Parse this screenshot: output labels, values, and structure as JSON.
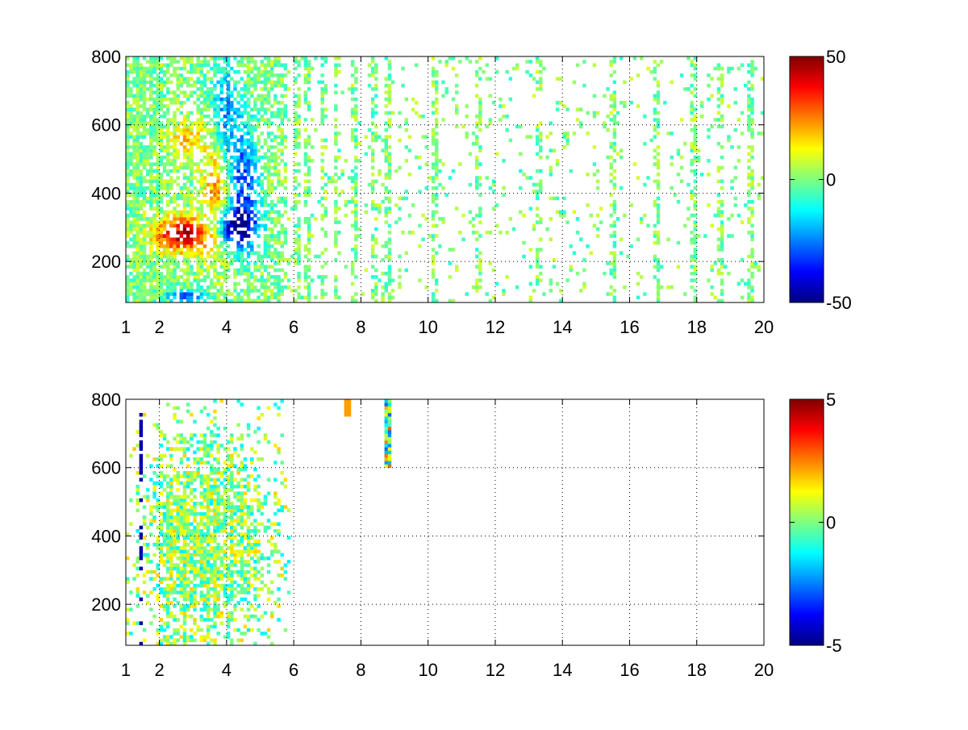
{
  "chart_data": [
    {
      "type": "heatmap",
      "title": "",
      "xlabel": "",
      "ylabel": "",
      "xlim": [
        1,
        20
      ],
      "ylim": [
        80,
        800
      ],
      "x_ticks": [
        "1",
        "2",
        "4",
        "6",
        "8",
        "10",
        "12",
        "14",
        "16",
        "18",
        "20"
      ],
      "y_ticks": [
        "200",
        "400",
        "600",
        "800"
      ],
      "grid": true,
      "colormap": "jet",
      "colorbar": {
        "ticks": [
          "50",
          "0",
          "-50"
        ],
        "min": -50,
        "max": 50
      },
      "colors": [
        "#00007f",
        "#0000ff",
        "#00ffff",
        "#7fff7f",
        "#ffff00",
        "#ff0000",
        "#7f0000"
      ],
      "features": [
        {
          "x": 2.7,
          "y": 280,
          "value": 45,
          "description": "positive ridge"
        },
        {
          "x": 4.1,
          "y": 300,
          "value": -45,
          "description": "negative ridge"
        },
        {
          "x": 2.8,
          "y": 100,
          "value": -35,
          "description": "negative spot"
        }
      ]
    },
    {
      "type": "heatmap",
      "title": "",
      "xlabel": "",
      "ylabel": "",
      "xlim": [
        1,
        20
      ],
      "ylim": [
        80,
        800
      ],
      "x_ticks": [
        "1",
        "2",
        "4",
        "6",
        "8",
        "10",
        "12",
        "14",
        "16",
        "18",
        "20"
      ],
      "y_ticks": [
        "200",
        "400",
        "600",
        "800"
      ],
      "grid": true,
      "colormap": "jet",
      "colorbar": {
        "ticks": [
          "5",
          "0",
          "-5"
        ],
        "min": -5,
        "max": 5
      },
      "colors": [
        "#00007f",
        "#0000ff",
        "#00ffff",
        "#7fff7f",
        "#ffff00",
        "#ff0000",
        "#7f0000"
      ],
      "features": [
        {
          "x": 3.3,
          "y": 350,
          "value": 0.5,
          "description": "main cloud"
        },
        {
          "x": 1.45,
          "y": 650,
          "value": -4.5,
          "description": "blue streak"
        },
        {
          "x": 8.8,
          "y": 700,
          "value": 0,
          "description": "vertical streak"
        }
      ]
    }
  ]
}
